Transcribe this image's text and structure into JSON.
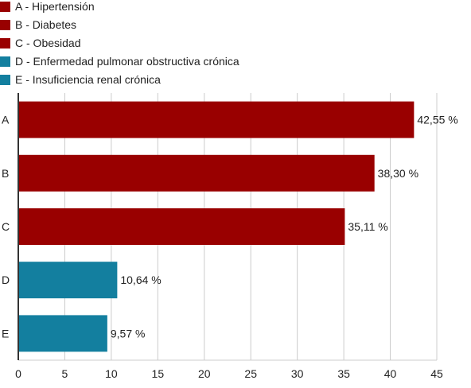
{
  "chart_data": {
    "type": "bar",
    "orientation": "horizontal",
    "title": "",
    "xlabel": "",
    "ylabel": "",
    "xlim": [
      0,
      45
    ],
    "x_ticks": [
      0,
      5,
      10,
      15,
      20,
      25,
      30,
      35,
      40,
      45
    ],
    "grid": true,
    "legend_position": "top-left",
    "categories": [
      "A",
      "B",
      "C",
      "D",
      "E"
    ],
    "values": [
      42.55,
      38.3,
      35.11,
      10.64,
      9.57
    ],
    "value_labels": [
      "42,55 %",
      "38,30 %",
      "35,11 %",
      "10,64 %",
      "9,57 %"
    ],
    "bar_colors": [
      "#990000",
      "#990000",
      "#990000",
      "#137f9f",
      "#137f9f"
    ],
    "legend": [
      {
        "label": "A - Hipertensión",
        "color": "#990000"
      },
      {
        "label": "B - Diabetes",
        "color": "#990000"
      },
      {
        "label": "C - Obesidad",
        "color": "#990000"
      },
      {
        "label": "D - Enfermedad pulmonar obstructiva crónica",
        "color": "#137f9f"
      },
      {
        "label": "E - Insuficiencia renal crónica",
        "color": "#137f9f"
      }
    ]
  }
}
